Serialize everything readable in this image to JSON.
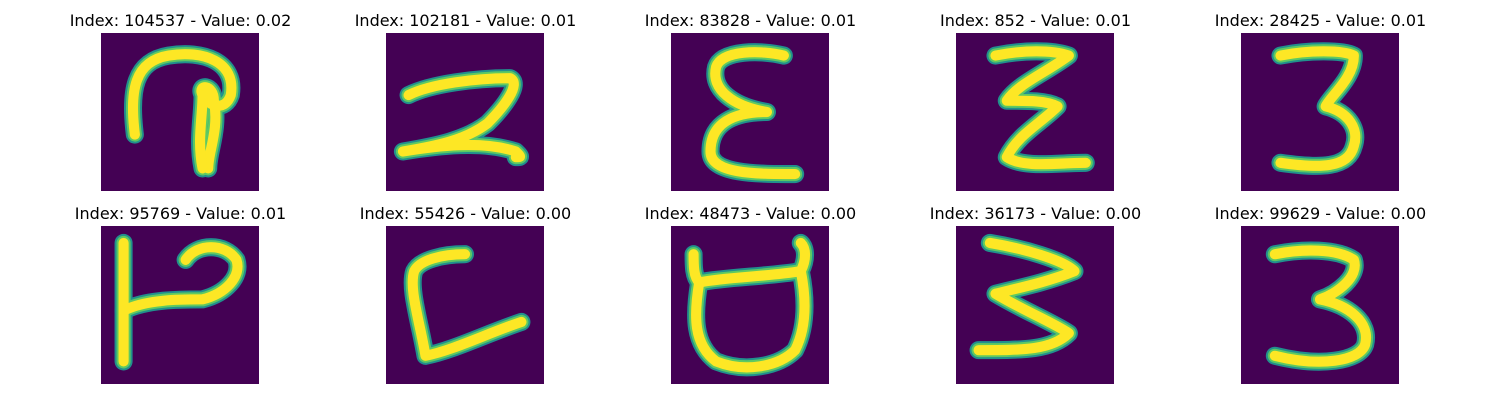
{
  "colors": {
    "background": "#440154",
    "stroke_outer": "#21908d",
    "stroke_mid": "#5ec962",
    "stroke_core": "#fde725"
  },
  "panels": [
    {
      "title": "Index: 104537 - Value: 0.02"
    },
    {
      "title": "Index: 102181 - Value: 0.01"
    },
    {
      "title": "Index: 83828 - Value: 0.01"
    },
    {
      "title": "Index: 852 - Value: 0.01"
    },
    {
      "title": "Index: 28425 - Value: 0.01"
    },
    {
      "title": "Index: 95769 - Value: 0.01"
    },
    {
      "title": "Index: 55426 - Value: 0.00"
    },
    {
      "title": "Index: 48473 - Value: 0.00"
    },
    {
      "title": "Index: 36173 - Value: 0.00"
    },
    {
      "title": "Index: 99629 - Value: 0.00"
    }
  ]
}
